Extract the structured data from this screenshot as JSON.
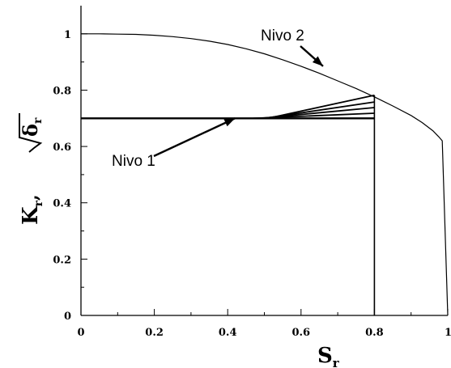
{
  "chart_data": {
    "type": "line",
    "xlabel": "S",
    "xlabel_sub": "r",
    "ylabel_k": "K",
    "ylabel_k_sub": "r",
    "ylabel_sep": ",",
    "ylabel_delta": "δ",
    "ylabel_delta_sub": "r",
    "xlim": [
      0,
      1
    ],
    "ylim": [
      0,
      1.1
    ],
    "xticks": [
      "0",
      "0.2",
      "0.4",
      "0.6",
      "0.8",
      "1"
    ],
    "yticks": [
      "0",
      "0.2",
      "0.4",
      "0.6",
      "0.8",
      "1"
    ],
    "grid": false,
    "series": [
      {
        "curve": "level-2",
        "x": [
          0,
          0.05,
          0.1,
          0.15,
          0.2,
          0.25,
          0.3,
          0.35,
          0.4,
          0.45,
          0.5,
          0.55,
          0.6,
          0.65,
          0.7,
          0.75,
          0.8,
          0.85,
          0.9,
          0.93,
          0.96,
          0.975,
          0.985,
          1.0
        ],
        "y": [
          1.0,
          1.0,
          0.999,
          0.998,
          0.995,
          0.99,
          0.983,
          0.974,
          0.962,
          0.947,
          0.929,
          0.908,
          0.885,
          0.86,
          0.833,
          0.806,
          0.776,
          0.744,
          0.71,
          0.685,
          0.655,
          0.635,
          0.62,
          0.0
        ]
      },
      {
        "curve": "level-1",
        "x": [
          0,
          0.8
        ],
        "y": [
          0.7,
          0.7
        ]
      },
      {
        "curve": "level-1-branch",
        "x": [
          0.47,
          0.8
        ],
        "y": [
          0.7,
          0.718
        ]
      },
      {
        "curve": "level-1-branch",
        "x": [
          0.49,
          0.8
        ],
        "y": [
          0.7,
          0.738
        ]
      },
      {
        "curve": "level-1-branch",
        "x": [
          0.5,
          0.8
        ],
        "y": [
          0.7,
          0.758
        ]
      },
      {
        "curve": "level-1-branch",
        "x": [
          0.51,
          0.8
        ],
        "y": [
          0.7,
          0.782
        ]
      },
      {
        "curve": "cutoff",
        "x": [
          0.8,
          0.8
        ],
        "y": [
          0,
          0.782
        ]
      }
    ],
    "annotations": [
      {
        "text": "Nivo 2",
        "arrow_to": [
          0.66,
          0.885
        ]
      },
      {
        "text": "Nivo 1",
        "arrow_to": [
          0.42,
          0.7
        ]
      }
    ]
  }
}
